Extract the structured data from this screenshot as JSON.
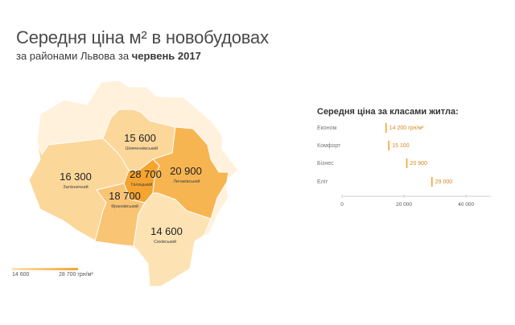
{
  "header": {
    "title": "Середня ціна м² в новобудовах",
    "subtitle_prefix": "за районами Львова за ",
    "subtitle_period": "червень 2017"
  },
  "map": {
    "districts": [
      {
        "key": "shevchenkivskyi",
        "value": "15 600",
        "name": "Шевченківський",
        "color": "#fcd79a"
      },
      {
        "key": "zaliznychnyi",
        "value": "16 300",
        "name": "Залізничний",
        "color": "#fcd79a"
      },
      {
        "key": "galytskyi",
        "value": "28 700",
        "name": "Галицький",
        "color": "#f5a430"
      },
      {
        "key": "lychakivskyi",
        "value": "20 900",
        "name": "Личаківський",
        "color": "#f7b552"
      },
      {
        "key": "frankivskyi",
        "value": "18 700",
        "name": "Франківський",
        "color": "#fac475"
      },
      {
        "key": "sykhivskyi",
        "value": "14 600",
        "name": "Сихівський",
        "color": "#fde2b4"
      }
    ],
    "outskirts_color": "#fff1db"
  },
  "legend": {
    "min_label": "14 600",
    "max_label": "28 700 грн/м²",
    "min_color": "#fde2b4",
    "max_color": "#f5a430"
  },
  "class_chart": {
    "title": "Середня ціна за класами житла:",
    "chart_data": {
      "type": "bar",
      "orientation": "horizontal",
      "categories": [
        "Економ",
        "Комфорт",
        "Бізнес",
        "Еліт"
      ],
      "values": [
        14200,
        15100,
        20900,
        29000
      ],
      "value_labels": [
        "14 200 грн/м²",
        "15 100",
        "20 900",
        "29 000"
      ],
      "xlim": [
        0,
        48000
      ],
      "ticks": [
        0,
        20000,
        40000
      ],
      "tick_labels": [
        "0",
        "20 000",
        "40 000"
      ],
      "bar_color": "#f5a430"
    }
  }
}
